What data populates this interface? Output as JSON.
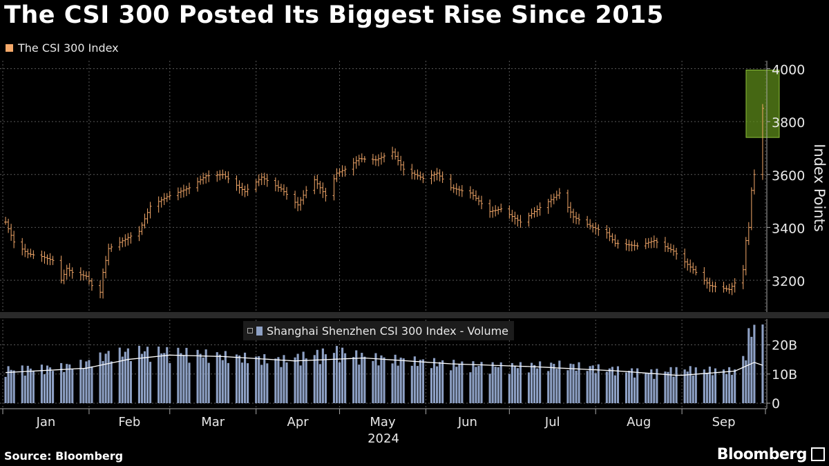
{
  "header": {
    "title": "The CSI 300 Posted Its Biggest Rise Since 2015",
    "legend_label": "The CSI 300 Index"
  },
  "footer": {
    "source": "Source: Bloomberg",
    "brand": "Bloomberg"
  },
  "colors": {
    "price": "#f5a96a",
    "volume_bar": "#8ea1c5",
    "volume_avg_line": "#ffffff",
    "highlight_fill": "#5c8a1a",
    "highlight_stroke": "#8fc23a",
    "grid": "#5a5a5a"
  },
  "chart_data": [
    {
      "type": "line",
      "style": "ohlc-bars",
      "title": "The CSI 300 Posted Its Biggest Rise Since 2015",
      "series": [
        {
          "name": "The CSI 300 Index",
          "x_months": [
            "Jan",
            "Feb",
            "Mar",
            "Apr",
            "May",
            "Jun",
            "Jul",
            "Aug",
            "Sep"
          ],
          "x_year": "2024",
          "anchors": [
            [
              "2024-01-02",
              3420
            ],
            [
              "2024-01-05",
              3345
            ],
            [
              "2024-01-10",
              3300
            ],
            [
              "2024-01-15",
              3290
            ],
            [
              "2024-01-19",
              3275
            ],
            [
              "2024-01-22",
              3200
            ],
            [
              "2024-01-24",
              3245
            ],
            [
              "2024-01-26",
              3230
            ],
            [
              "2024-01-31",
              3215
            ],
            [
              "2024-02-02",
              3180
            ],
            [
              "2024-02-05",
              3155
            ],
            [
              "2024-02-06",
              3230
            ],
            [
              "2024-02-08",
              3320
            ],
            [
              "2024-02-19",
              3385
            ],
            [
              "2024-02-23",
              3480
            ],
            [
              "2024-02-29",
              3516
            ],
            [
              "2024-03-08",
              3550
            ],
            [
              "2024-03-14",
              3595
            ],
            [
              "2024-03-20",
              3600
            ],
            [
              "2024-03-28",
              3535
            ],
            [
              "2024-04-03",
              3590
            ],
            [
              "2024-04-10",
              3545
            ],
            [
              "2024-04-16",
              3485
            ],
            [
              "2024-04-19",
              3540
            ],
            [
              "2024-04-22",
              3580
            ],
            [
              "2024-04-26",
              3520
            ],
            [
              "2024-04-30",
              3605
            ],
            [
              "2024-05-03",
              3620
            ],
            [
              "2024-05-08",
              3660
            ],
            [
              "2024-05-14",
              3655
            ],
            [
              "2024-05-20",
              3685
            ],
            [
              "2024-05-24",
              3620
            ],
            [
              "2024-05-31",
              3585
            ],
            [
              "2024-06-05",
              3605
            ],
            [
              "2024-06-10",
              3550
            ],
            [
              "2024-06-17",
              3530
            ],
            [
              "2024-06-24",
              3460
            ],
            [
              "2024-06-28",
              3470
            ],
            [
              "2024-07-05",
              3420
            ],
            [
              "2024-07-10",
              3460
            ],
            [
              "2024-07-16",
              3505
            ],
            [
              "2024-07-19",
              3530
            ],
            [
              "2024-07-24",
              3440
            ],
            [
              "2024-07-31",
              3400
            ],
            [
              "2024-08-05",
              3380
            ],
            [
              "2024-08-08",
              3340
            ],
            [
              "2024-08-16",
              3330
            ],
            [
              "2024-08-22",
              3350
            ],
            [
              "2024-08-29",
              3310
            ],
            [
              "2024-09-02",
              3270
            ],
            [
              "2024-09-06",
              3230
            ],
            [
              "2024-09-11",
              3180
            ],
            [
              "2024-09-18",
              3165
            ],
            [
              "2024-09-20",
              3190
            ],
            [
              "2024-09-23",
              3240
            ],
            [
              "2024-09-24",
              3350
            ],
            [
              "2024-09-25",
              3400
            ],
            [
              "2024-09-26",
              3540
            ],
            [
              "2024-09-27",
              3600
            ],
            [
              "2024-09-30",
              3850
            ]
          ]
        }
      ],
      "ylabel": "Index Points",
      "yticks": [
        3200,
        3400,
        3600,
        3800,
        4000
      ],
      "ylim": [
        3080,
        4030
      ],
      "highlight": {
        "from": "2024-09-30",
        "to": "2024-09-30",
        "ymin": 3740,
        "ymax": 3995
      },
      "grid": true
    },
    {
      "type": "bar",
      "series": [
        {
          "name": "Shanghai Shenzhen CSI 300 Index - Volume",
          "anchors": [
            [
              "2024-01-02",
              11
            ],
            [
              "2024-01-20",
              11.5
            ],
            [
              "2024-01-31",
              13
            ],
            [
              "2024-02-08",
              16
            ],
            [
              "2024-02-20",
              17
            ],
            [
              "2024-03-05",
              16.5
            ],
            [
              "2024-03-25",
              15
            ],
            [
              "2024-04-10",
              14
            ],
            [
              "2024-04-30",
              17
            ],
            [
              "2024-05-10",
              15
            ],
            [
              "2024-05-31",
              13.5
            ],
            [
              "2024-06-15",
              12.5
            ],
            [
              "2024-07-01",
              12
            ],
            [
              "2024-07-20",
              12.5
            ],
            [
              "2024-08-01",
              11.5
            ],
            [
              "2024-08-20",
              10
            ],
            [
              "2024-09-01",
              11
            ],
            [
              "2024-09-20",
              10.5
            ],
            [
              "2024-09-24",
              16
            ],
            [
              "2024-09-25",
              22
            ],
            [
              "2024-09-26",
              24
            ],
            [
              "2024-09-30",
              27
            ]
          ]
        },
        {
          "name": "",
          "kind": "moving-average",
          "anchors": [
            [
              "2024-01-02",
              10.5
            ],
            [
              "2024-01-31",
              12
            ],
            [
              "2024-02-15",
              15
            ],
            [
              "2024-03-01",
              16.5
            ],
            [
              "2024-03-20",
              16
            ],
            [
              "2024-04-15",
              14.5
            ],
            [
              "2024-05-10",
              15.5
            ],
            [
              "2024-06-10",
              13.5
            ],
            [
              "2024-07-10",
              12.5
            ],
            [
              "2024-08-10",
              11
            ],
            [
              "2024-08-31",
              9.5
            ],
            [
              "2024-09-20",
              11
            ],
            [
              "2024-09-27",
              14
            ],
            [
              "2024-09-30",
              13
            ]
          ]
        }
      ],
      "ylabel": "",
      "yticks": [
        0,
        10,
        20
      ],
      "ytick_labels": [
        "0",
        "10B",
        "20B"
      ],
      "ylim": [
        0,
        27
      ],
      "legend": "top-center"
    }
  ]
}
